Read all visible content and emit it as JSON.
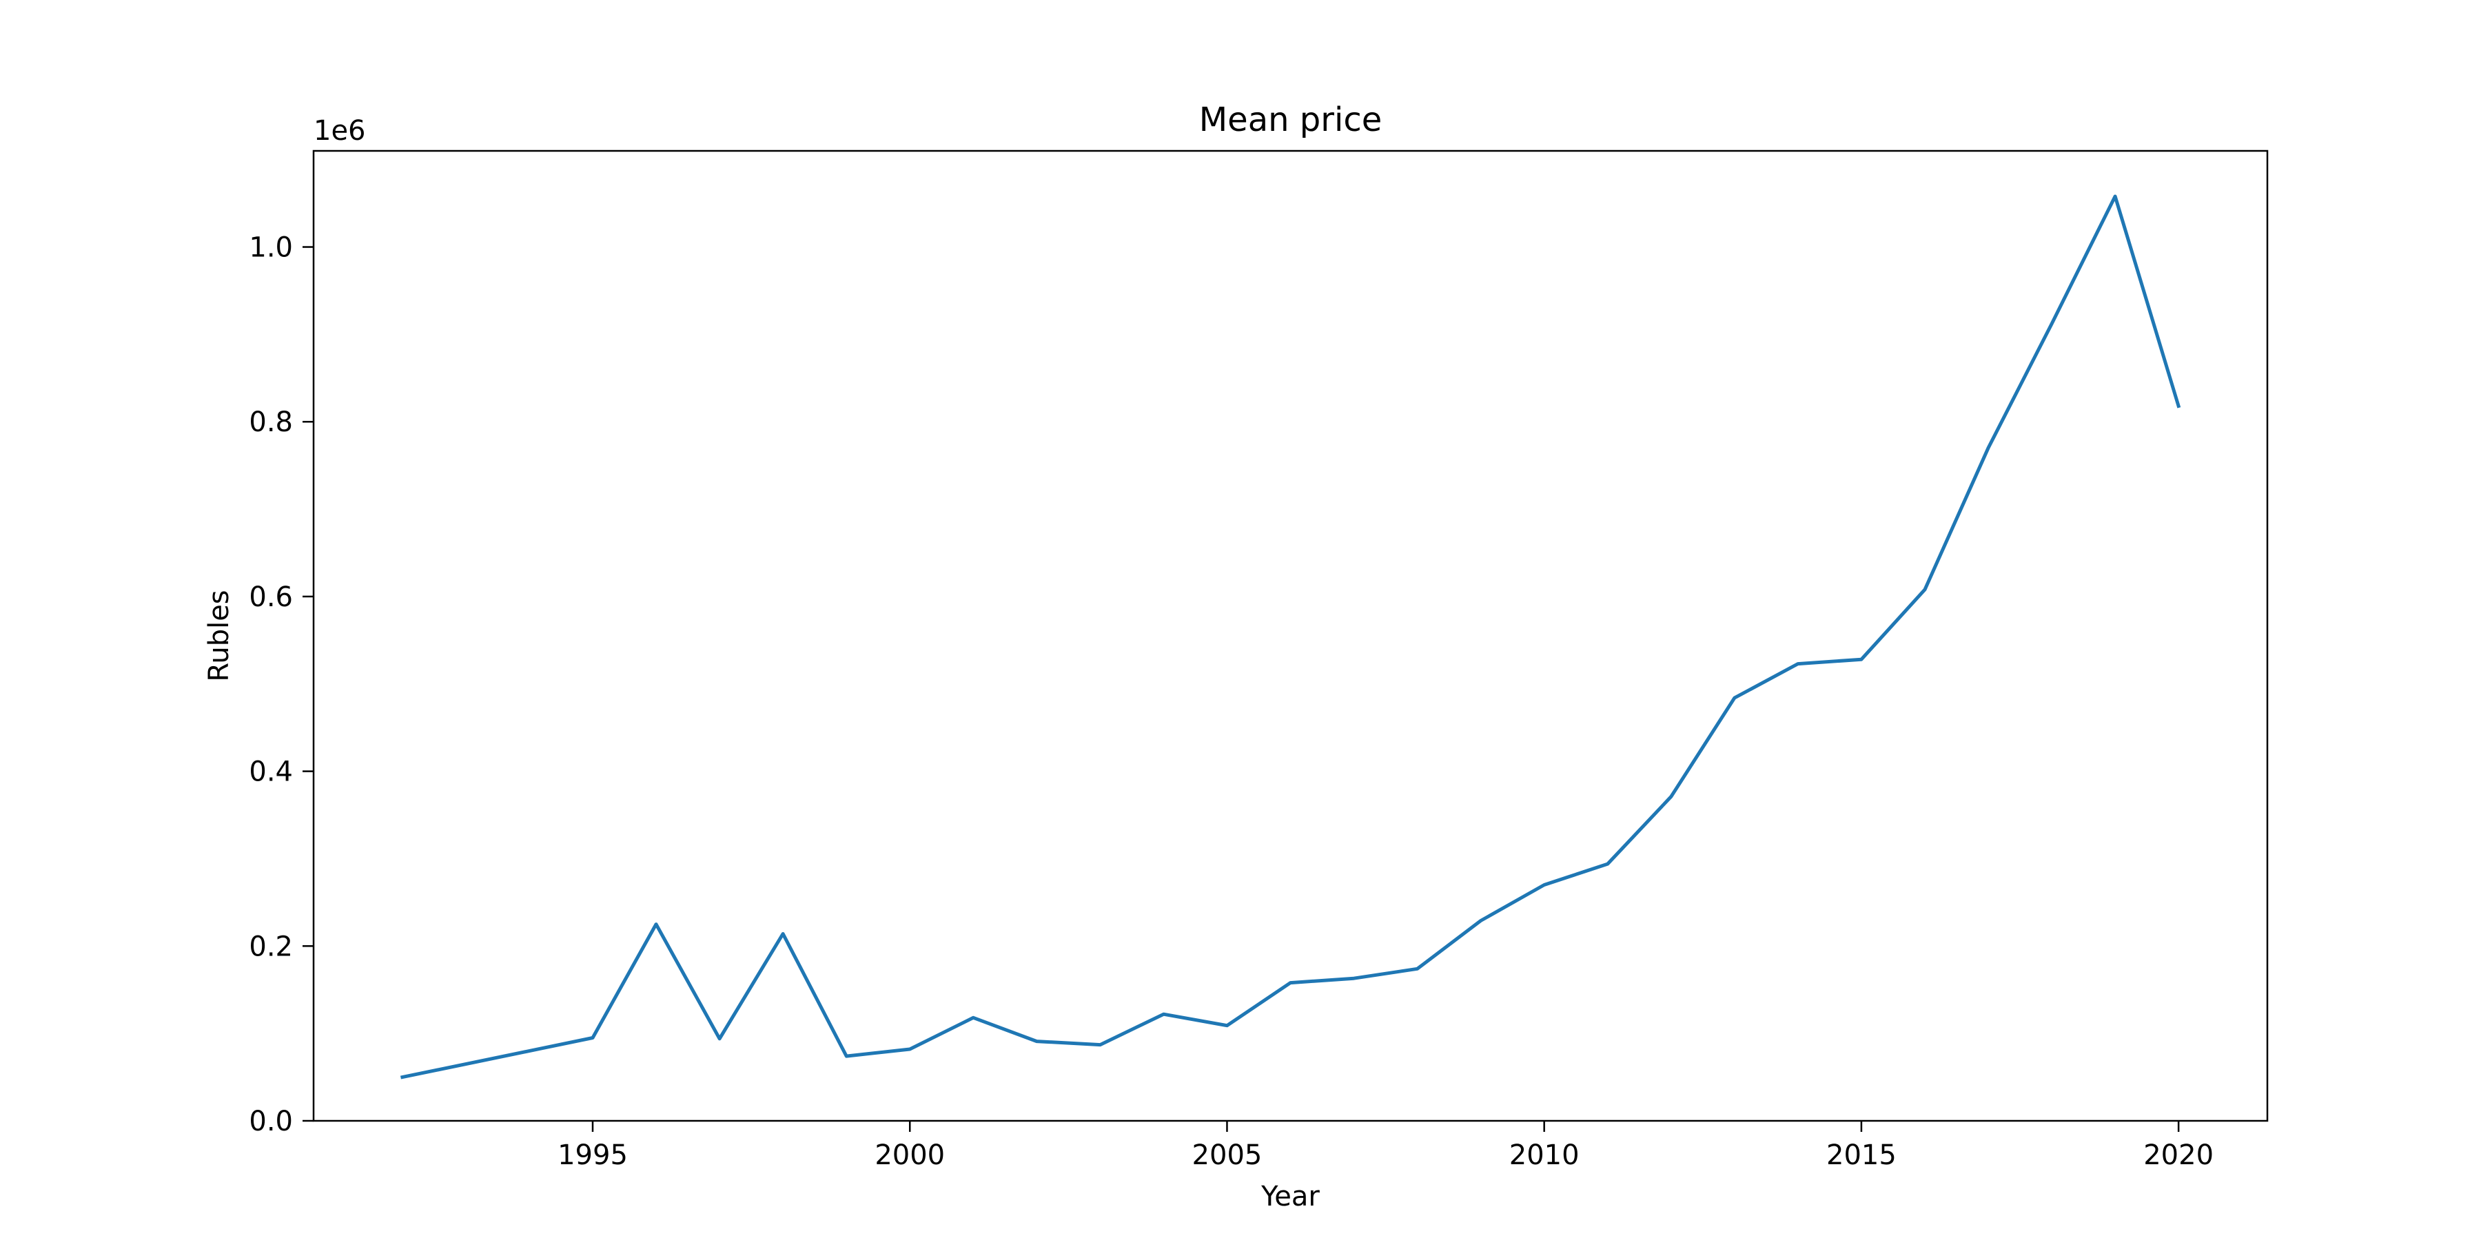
{
  "chart_data": {
    "type": "line",
    "title": "Mean price",
    "xlabel": "Year",
    "ylabel": "Rubles",
    "y_offset_label": "1e6",
    "xlim": [
      1990.6,
      2021.4
    ],
    "ylim": [
      0,
      1.11
    ],
    "x_ticks": [
      1995,
      2000,
      2005,
      2010,
      2015,
      2020
    ],
    "y_ticks": [
      0.0,
      0.2,
      0.4,
      0.6,
      0.8,
      1.0
    ],
    "x_tick_labels": [
      "1995",
      "2000",
      "2005",
      "2010",
      "2015",
      "2020"
    ],
    "y_tick_labels": [
      "0.0",
      "0.2",
      "0.4",
      "0.6",
      "0.8",
      "1.0"
    ],
    "grid": false,
    "series": [
      {
        "color": "#1f77b4",
        "x": [
          1992,
          1995,
          1996,
          1997,
          1998,
          1999,
          2000,
          2001,
          2002,
          2003,
          2004,
          2005,
          2006,
          2007,
          2008,
          2009,
          2010,
          2011,
          2012,
          2013,
          2014,
          2015,
          2016,
          2017,
          2018,
          2019,
          2020
        ],
        "y": [
          0.05,
          0.095,
          0.225,
          0.094,
          0.214,
          0.074,
          0.082,
          0.118,
          0.091,
          0.087,
          0.122,
          0.109,
          0.158,
          0.163,
          0.174,
          0.229,
          0.27,
          0.294,
          0.371,
          0.484,
          0.523,
          0.528,
          0.608,
          0.77,
          0.912,
          1.058,
          0.818
        ]
      }
    ]
  }
}
